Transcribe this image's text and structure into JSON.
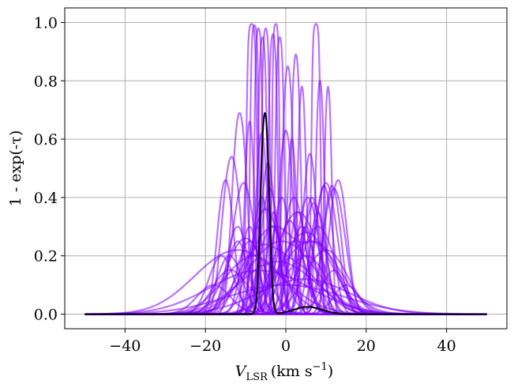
{
  "chart_data": {
    "type": "line",
    "title": "",
    "xlabel": {
      "symbol": "V",
      "subscript": "LSR",
      "units_prefix": "(km s",
      "units_exp": "−1",
      "units_suffix": ")"
    },
    "ylabel": "1 - exp(-τ)",
    "xlim": [
      -55,
      55
    ],
    "ylim": [
      -0.05,
      1.05
    ],
    "xticks": [
      -40,
      -20,
      0,
      20,
      40
    ],
    "xtick_labels": [
      "−40",
      "−20",
      "0",
      "20",
      "40"
    ],
    "yticks": [
      0.0,
      0.2,
      0.4,
      0.6,
      0.8,
      1.0
    ],
    "ytick_labels": [
      "0.0",
      "0.2",
      "0.4",
      "0.6",
      "0.8",
      "1.0"
    ],
    "grid": true,
    "x_range": [
      -50,
      50
    ],
    "colors": {
      "samples": "#8000ff",
      "mean": "#000000",
      "grid": "#b0b0b0"
    },
    "sample_series": [
      {
        "components": [
          [
            -8.5,
            1.0,
            0.7
          ],
          [
            -2.5,
            0.3,
            1.2
          ]
        ]
      },
      {
        "components": [
          [
            -7.8,
            0.99,
            0.6
          ],
          [
            3.0,
            0.35,
            2.0
          ]
        ]
      },
      {
        "components": [
          [
            -6.8,
            0.98,
            0.6
          ],
          [
            4.0,
            0.3,
            3.0
          ]
        ]
      },
      {
        "components": [
          [
            -5.8,
            0.95,
            0.7
          ]
        ]
      },
      {
        "components": [
          [
            -5.0,
            0.98,
            0.6
          ],
          [
            5.5,
            0.4,
            2.5
          ]
        ]
      },
      {
        "components": [
          [
            -3.2,
            0.96,
            0.7
          ],
          [
            -14.0,
            0.2,
            3.0
          ]
        ]
      },
      {
        "components": [
          [
            -2.5,
            1.0,
            0.5
          ]
        ]
      },
      {
        "components": [
          [
            -1.5,
            0.95,
            0.7
          ],
          [
            8.0,
            0.35,
            2.0
          ]
        ]
      },
      {
        "components": [
          [
            0.5,
            0.85,
            1.0
          ],
          [
            -12.0,
            0.3,
            2.5
          ]
        ]
      },
      {
        "components": [
          [
            2.5,
            0.89,
            0.8
          ],
          [
            10.0,
            0.45,
            2.5
          ]
        ]
      },
      {
        "components": [
          [
            4.0,
            0.78,
            0.8
          ],
          [
            12.0,
            0.43,
            2.5
          ]
        ]
      },
      {
        "components": [
          [
            7.5,
            1.0,
            0.6
          ],
          [
            -6.0,
            0.4,
            2.0
          ]
        ]
      },
      {
        "components": [
          [
            8.5,
            0.8,
            0.8
          ],
          [
            -3.0,
            0.35,
            1.5
          ]
        ]
      },
      {
        "components": [
          [
            10.5,
            0.78,
            0.7
          ],
          [
            -9.0,
            0.3,
            2.0
          ]
        ]
      },
      {
        "components": [
          [
            -11.5,
            0.69,
            1.5
          ],
          [
            2.0,
            0.25,
            3.0
          ]
        ]
      },
      {
        "components": [
          [
            -13.5,
            0.54,
            2.0
          ],
          [
            5.0,
            0.3,
            2.0
          ]
        ]
      },
      {
        "components": [
          [
            -15.0,
            0.46,
            1.8
          ],
          [
            -1.0,
            0.4,
            2.0
          ]
        ]
      },
      {
        "components": [
          [
            -9.0,
            0.66,
            1.0
          ],
          [
            6.5,
            0.4,
            2.0
          ]
        ]
      },
      {
        "components": [
          [
            -10.5,
            0.45,
            2.5
          ],
          [
            1.5,
            0.6,
            1.0
          ]
        ]
      },
      {
        "components": [
          [
            -6.0,
            0.62,
            1.2
          ],
          [
            9.5,
            0.44,
            2.0
          ]
        ]
      },
      {
        "components": [
          [
            0.0,
            0.63,
            1.5
          ],
          [
            -16.0,
            0.2,
            3.0
          ]
        ]
      },
      {
        "components": [
          [
            13.0,
            0.46,
            2.0
          ],
          [
            -7.0,
            0.3,
            1.5
          ]
        ]
      },
      {
        "components": [
          [
            11.5,
            0.44,
            2.0
          ]
        ]
      },
      {
        "components": [
          [
            6.0,
            0.55,
            1.5
          ],
          [
            -12.0,
            0.25,
            2.5
          ]
        ]
      },
      {
        "components": [
          [
            -4.0,
            0.43,
            2.0
          ],
          [
            15.0,
            0.1,
            3.0
          ]
        ]
      },
      {
        "components": [
          [
            -12.0,
            0.22,
            10.0
          ]
        ]
      },
      {
        "components": [
          [
            -3.0,
            0.3,
            6.0
          ],
          [
            9.0,
            0.2,
            4.0
          ]
        ]
      },
      {
        "components": [
          [
            3.0,
            0.35,
            5.0
          ]
        ]
      },
      {
        "components": [
          [
            -1.0,
            0.25,
            8.0
          ]
        ]
      },
      {
        "components": [
          [
            5.0,
            0.28,
            6.0
          ],
          [
            -14.0,
            0.15,
            4.0
          ]
        ]
      },
      {
        "components": [
          [
            -8.0,
            0.2,
            7.0
          ]
        ]
      },
      {
        "components": [
          [
            8.0,
            0.3,
            4.0
          ]
        ]
      },
      {
        "components": [
          [
            -2.0,
            0.18,
            9.0
          ]
        ]
      },
      {
        "components": [
          [
            1.0,
            0.32,
            3.0
          ],
          [
            -18.0,
            0.1,
            4.0
          ]
        ]
      },
      {
        "components": [
          [
            -5.0,
            0.36,
            3.5
          ],
          [
            12.0,
            0.15,
            3.0
          ]
        ]
      },
      {
        "components": [
          [
            10.0,
            0.22,
            5.0
          ]
        ]
      },
      {
        "components": [
          [
            -10.0,
            0.26,
            4.5
          ]
        ]
      },
      {
        "components": [
          [
            4.5,
            0.12,
            11.0
          ]
        ]
      },
      {
        "components": [
          [
            -6.5,
            0.15,
            12.0
          ]
        ]
      },
      {
        "components": [
          [
            2.0,
            0.4,
            2.5
          ],
          [
            -9.0,
            0.25,
            3.0
          ]
        ]
      },
      {
        "components": [
          [
            0.0,
            0.1,
            14.0
          ]
        ]
      },
      {
        "components": [
          [
            7.0,
            0.38,
            2.5
          ],
          [
            -3.5,
            0.3,
            3.0
          ]
        ]
      },
      {
        "components": [
          [
            -4.5,
            0.5,
            1.5
          ],
          [
            5.0,
            0.2,
            5.0
          ]
        ]
      },
      {
        "components": [
          [
            6.0,
            0.25,
            7.0
          ]
        ]
      },
      {
        "components": [
          [
            -7.0,
            0.2,
            5.0
          ],
          [
            3.0,
            0.15,
            6.0
          ]
        ]
      }
    ],
    "mean_series": {
      "components": [
        [
          -5.2,
          0.69,
          0.85
        ],
        [
          5.5,
          0.025,
          3.5
        ]
      ]
    }
  }
}
